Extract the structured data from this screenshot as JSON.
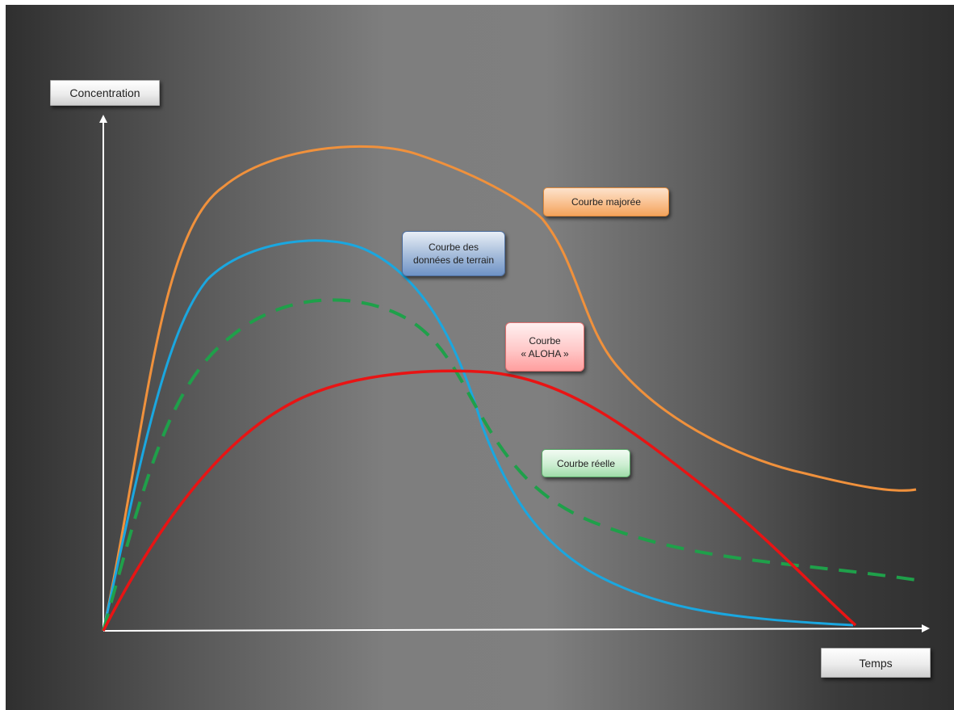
{
  "axes": {
    "y_label": "Concentration",
    "x_label": "Temps"
  },
  "curves": [
    {
      "id": "majoree",
      "label": "Courbe majorée",
      "color": "#f0913c",
      "dashed": false
    },
    {
      "id": "terrain",
      "label": "Courbe des\ndonnées de terrain",
      "color": "#1aa7e0",
      "dashed": false
    },
    {
      "id": "aloha",
      "label": "Courbe\n« ALOHA »",
      "color": "#e81414",
      "dashed": false
    },
    {
      "id": "reelle",
      "label": "Courbe réelle",
      "color": "#1fa04a",
      "dashed": true
    }
  ]
}
